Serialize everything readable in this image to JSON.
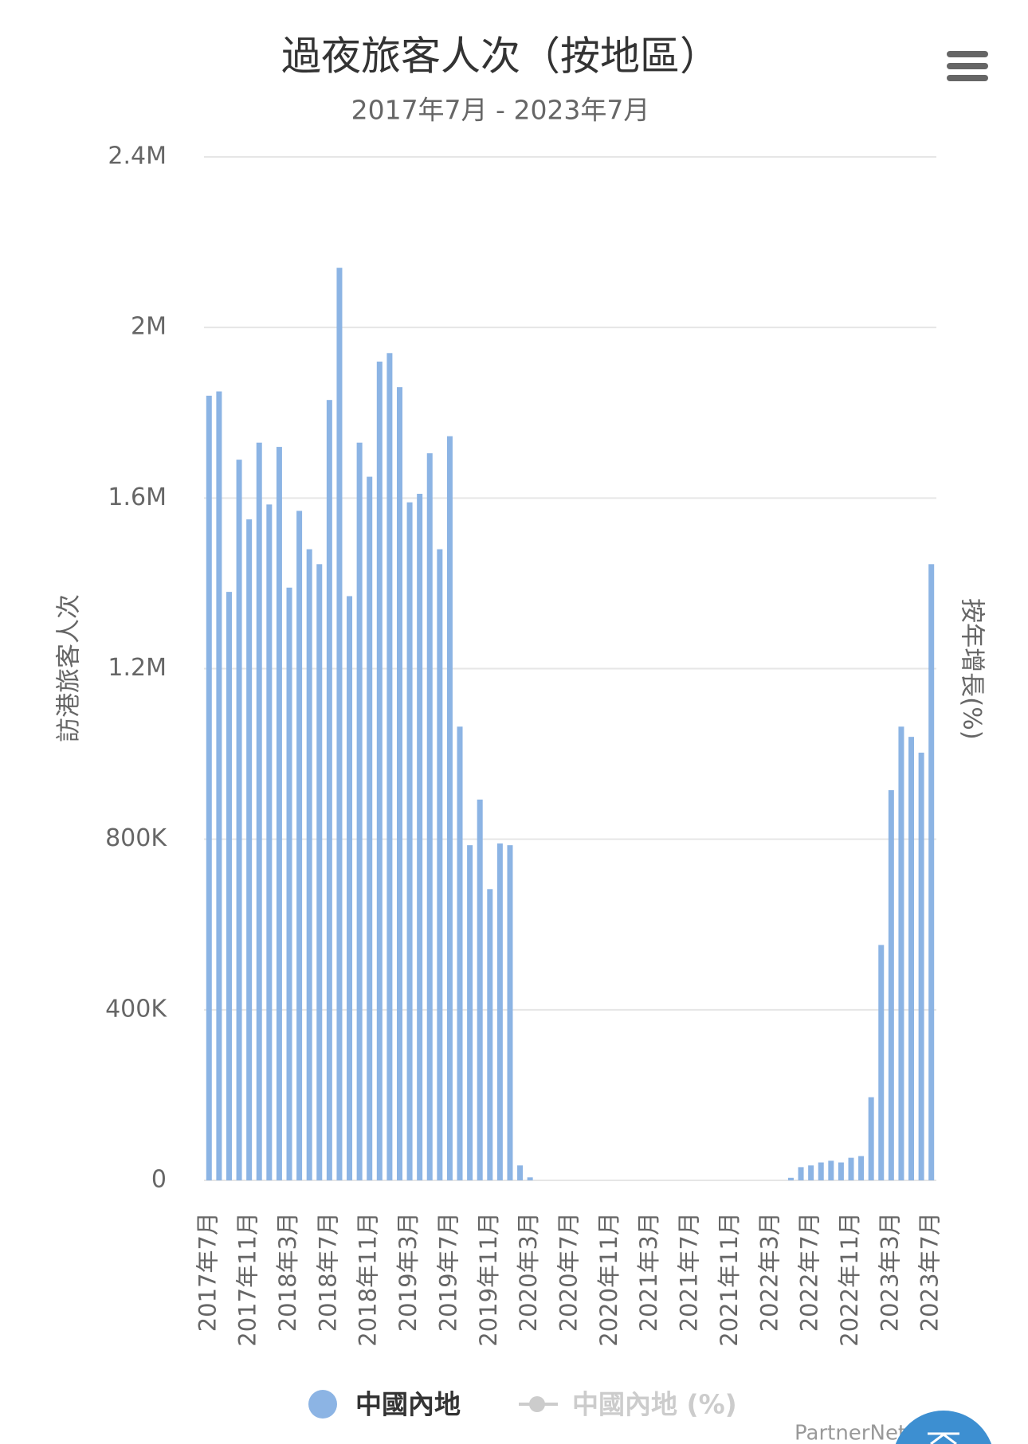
{
  "chart_data": {
    "type": "bar",
    "title": "過夜旅客人次（按地區）",
    "subtitle": "2017年7月 - 2023年7月",
    "y_axis_label": "訪港旅客人次",
    "y2_axis_label": "按年增長(%)",
    "categories": [
      "2017年7月",
      null,
      null,
      null,
      "2017年11月",
      null,
      null,
      null,
      "2018年3月",
      null,
      null,
      null,
      "2018年7月",
      null,
      null,
      null,
      "2018年11月",
      null,
      null,
      null,
      "2019年3月",
      null,
      null,
      null,
      "2019年7月",
      null,
      null,
      null,
      "2019年11月",
      null,
      null,
      null,
      "2020年3月",
      null,
      null,
      null,
      "2020年7月",
      null,
      null,
      null,
      "2020年11月",
      null,
      null,
      null,
      "2021年3月",
      null,
      null,
      null,
      "2021年7月",
      null,
      null,
      null,
      "2021年11月",
      null,
      null,
      null,
      "2022年3月",
      null,
      null,
      null,
      "2022年7月",
      null,
      null,
      null,
      "2022年11月",
      null,
      null,
      null,
      "2023年3月",
      null,
      null,
      null,
      "2023年7月"
    ],
    "series": [
      {
        "name": "中國內地",
        "color": "#8cb4e4",
        "values": [
          1840000,
          1850000,
          1380000,
          1690000,
          1550000,
          1730000,
          1585000,
          1720000,
          1390000,
          1570000,
          1480000,
          1445000,
          1830000,
          2140000,
          1370000,
          1730000,
          1650000,
          1920000,
          1940000,
          1860000,
          1590000,
          1610000,
          1705000,
          1480000,
          1745000,
          1064000,
          786000,
          893000,
          683000,
          790000,
          786000,
          35000,
          7000,
          0,
          0,
          0,
          0,
          0,
          0,
          0,
          0,
          0,
          0,
          0,
          0,
          0,
          0,
          0,
          0,
          0,
          0,
          0,
          0,
          0,
          0,
          0,
          0,
          0,
          6000,
          31000,
          35000,
          42000,
          46000,
          42000,
          53000,
          57000,
          195000,
          552000,
          915000,
          1064000,
          1040000,
          1003000,
          1445000
        ]
      }
    ],
    "hidden_legend_item": {
      "name": "中國內地 (%)",
      "color": "#cccccc"
    },
    "ylim": [
      0,
      2400000
    ],
    "yticks": [
      0,
      {
        "value": 400000,
        "label": "400K"
      },
      {
        "value": 800000,
        "label": "800K"
      },
      {
        "value": 1200000,
        "label": "1.2M"
      },
      {
        "value": 1600000,
        "label": "1.6M"
      },
      {
        "value": 2000000,
        "label": "2M"
      },
      {
        "value": 2400000,
        "label": "2.4M"
      }
    ],
    "grid": true,
    "credits": "PartnerNet"
  }
}
